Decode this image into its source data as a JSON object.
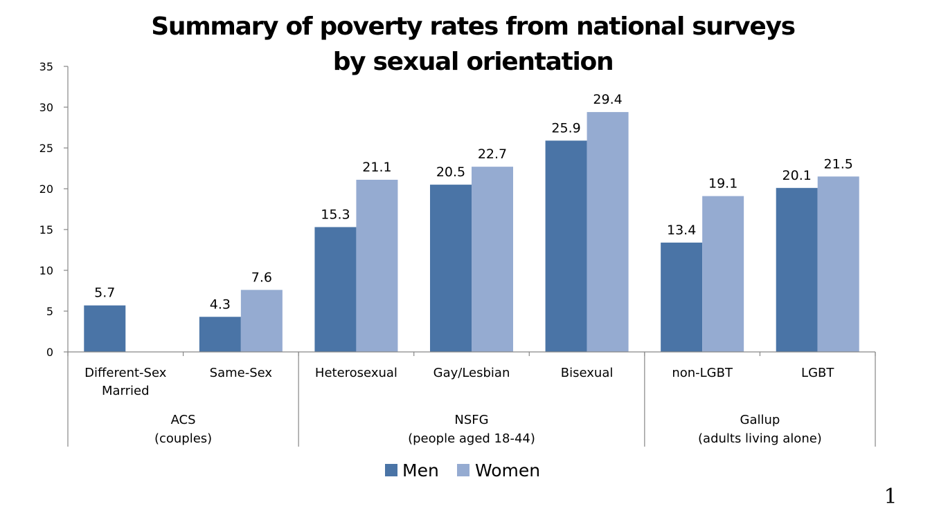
{
  "page_number": "1",
  "chart_data": {
    "type": "bar",
    "title_lines": [
      "Summary of poverty rates from national surveys",
      "by sexual orientation"
    ],
    "ylim": [
      0,
      35
    ],
    "yticks": [
      0,
      5,
      10,
      15,
      20,
      25,
      30,
      35
    ],
    "categories": [
      {
        "lines": [
          "Different-Sex",
          "Married"
        ]
      },
      {
        "lines": [
          "Same-Sex"
        ]
      },
      {
        "lines": [
          "Heterosexual"
        ]
      },
      {
        "lines": [
          "Gay/Lesbian"
        ]
      },
      {
        "lines": [
          "Bisexual"
        ]
      },
      {
        "lines": [
          "non-LGBT"
        ]
      },
      {
        "lines": [
          "LGBT"
        ]
      }
    ],
    "groups": [
      {
        "lines": [
          "ACS",
          "(couples)"
        ],
        "span": [
          0,
          1
        ]
      },
      {
        "lines": [
          "NSFG",
          "(people aged 18-44)"
        ],
        "span": [
          2,
          4
        ]
      },
      {
        "lines": [
          "Gallup",
          "(adults living alone)"
        ],
        "span": [
          5,
          6
        ]
      }
    ],
    "series": [
      {
        "name": "Men",
        "color": "#4a74a6",
        "values": [
          5.7,
          4.3,
          15.3,
          20.5,
          25.9,
          13.4,
          20.1
        ]
      },
      {
        "name": "Women",
        "color": "#95abd1",
        "values": [
          null,
          7.6,
          21.1,
          22.7,
          29.4,
          19.1,
          21.5
        ]
      }
    ],
    "legend": "bottom",
    "grid": false
  }
}
